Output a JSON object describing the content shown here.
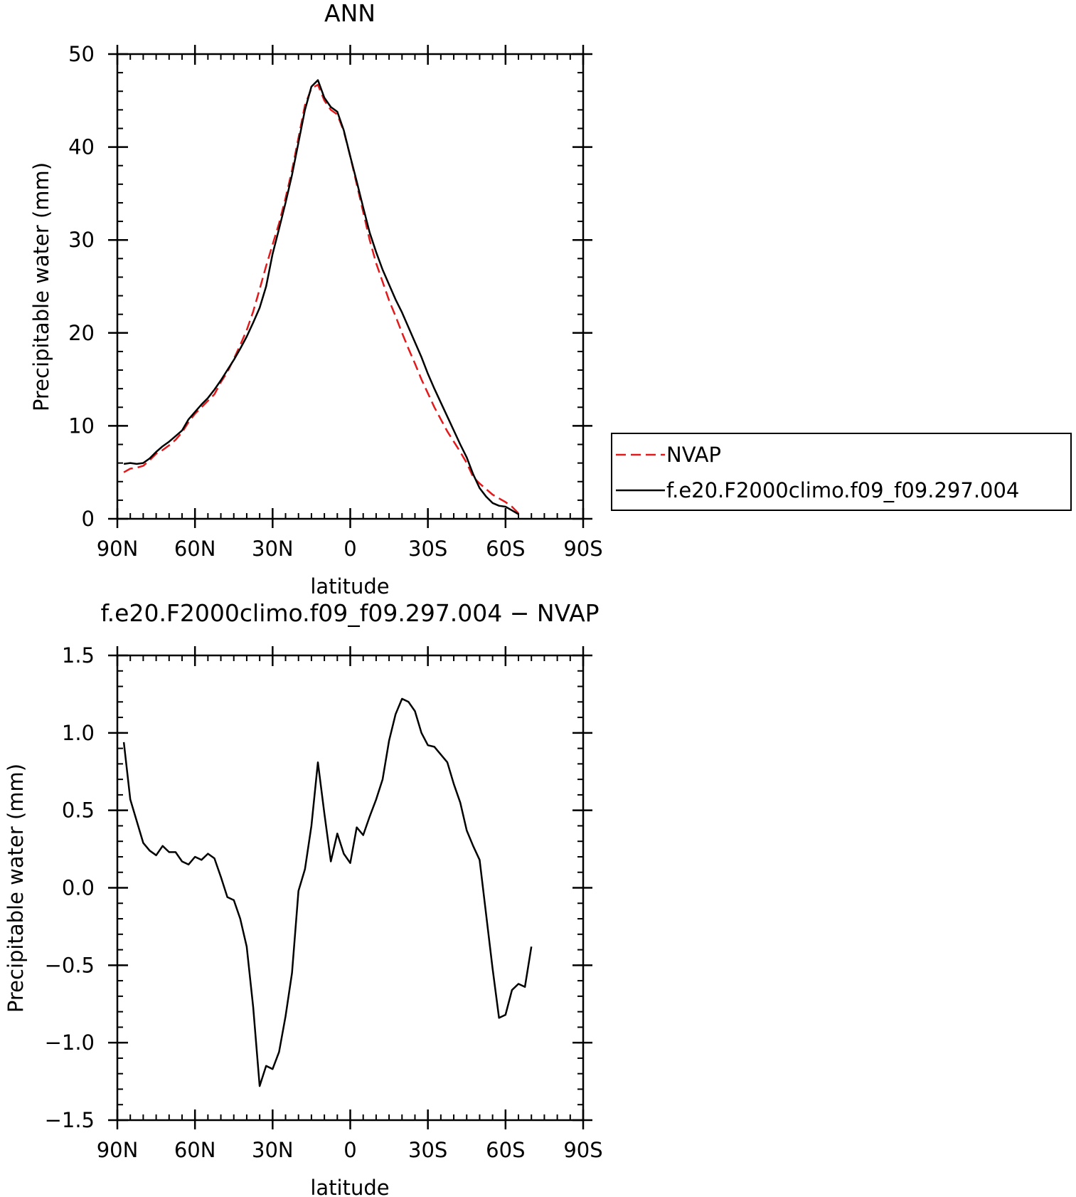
{
  "chart_data": [
    {
      "type": "line",
      "title": "ANN",
      "xlabel": "latitude",
      "ylabel": "Precipitable water (mm)",
      "xlim": [
        -90,
        90
      ],
      "ylim": [
        0,
        50
      ],
      "x_direction": "north-to-south",
      "x_ticks": [
        {
          "value": -90,
          "label": "90N"
        },
        {
          "value": -60,
          "label": "60N"
        },
        {
          "value": -30,
          "label": "30N"
        },
        {
          "value": 0,
          "label": "0"
        },
        {
          "value": 30,
          "label": "30S"
        },
        {
          "value": 60,
          "label": "60S"
        },
        {
          "value": 90,
          "label": "90S"
        }
      ],
      "y_ticks": [
        {
          "value": 0,
          "label": "0"
        },
        {
          "value": 10,
          "label": "10"
        },
        {
          "value": 20,
          "label": "20"
        },
        {
          "value": 30,
          "label": "30"
        },
        {
          "value": 40,
          "label": "40"
        },
        {
          "value": 50,
          "label": "50"
        }
      ],
      "legend_position": "right",
      "series": [
        {
          "name": "NVAP",
          "color": "#e31a1c",
          "dash": "dashed",
          "points": [
            [
              -87.5,
              5.0
            ],
            [
              -85,
              5.4
            ],
            [
              -82.5,
              5.5
            ],
            [
              -80,
              5.7
            ],
            [
              -77.5,
              6.3
            ],
            [
              -75,
              7.0
            ],
            [
              -72.5,
              7.4
            ],
            [
              -70,
              7.9
            ],
            [
              -67.5,
              8.5
            ],
            [
              -65,
              9.3
            ],
            [
              -62.5,
              10.4
            ],
            [
              -60,
              11.3
            ],
            [
              -57.5,
              12.0
            ],
            [
              -55,
              12.7
            ],
            [
              -52.5,
              13.4
            ],
            [
              -50,
              14.7
            ],
            [
              -47.5,
              15.8
            ],
            [
              -45,
              17.2
            ],
            [
              -42.5,
              18.7
            ],
            [
              -40,
              20.3
            ],
            [
              -37.5,
              22.3
            ],
            [
              -35,
              24.7
            ],
            [
              -32.5,
              27.2
            ],
            [
              -30,
              29.5
            ],
            [
              -27.5,
              31.8
            ],
            [
              -25,
              34.5
            ],
            [
              -22.5,
              37.5
            ],
            [
              -20,
              41.0
            ],
            [
              -17.5,
              44.5
            ],
            [
              -15,
              46.3
            ],
            [
              -12.5,
              46.7
            ],
            [
              -10,
              45.0
            ],
            [
              -7.5,
              44.0
            ],
            [
              -5,
              43.5
            ],
            [
              -2.5,
              41.7
            ],
            [
              0,
              39.0
            ],
            [
              2.5,
              36.0
            ],
            [
              5,
              33.0
            ],
            [
              7.5,
              30.0
            ],
            [
              10,
              27.5
            ],
            [
              12.5,
              25.5
            ],
            [
              15,
              23.5
            ],
            [
              17.5,
              21.8
            ],
            [
              20,
              20.0
            ],
            [
              22.5,
              18.3
            ],
            [
              25,
              16.7
            ],
            [
              27.5,
              15.0
            ],
            [
              30,
              13.5
            ],
            [
              32.5,
              12.0
            ],
            [
              35,
              10.7
            ],
            [
              37.5,
              9.4
            ],
            [
              40,
              8.3
            ],
            [
              42.5,
              7.2
            ],
            [
              45,
              6.0
            ],
            [
              47.5,
              4.5
            ],
            [
              50,
              3.8
            ],
            [
              52.5,
              3.2
            ],
            [
              55,
              2.6
            ],
            [
              57.5,
              2.2
            ],
            [
              60,
              1.8
            ],
            [
              62.5,
              1.3
            ],
            [
              65,
              0.6
            ]
          ]
        },
        {
          "name": "f.e20.F2000climo.f09_f09.297.004",
          "color": "#000000",
          "dash": "solid",
          "points": [
            [
              -87.5,
              5.9
            ],
            [
              -85,
              6.0
            ],
            [
              -82.5,
              5.9
            ],
            [
              -80,
              6.0
            ],
            [
              -77.5,
              6.5
            ],
            [
              -75,
              7.2
            ],
            [
              -72.5,
              7.8
            ],
            [
              -70,
              8.3
            ],
            [
              -67.5,
              8.9
            ],
            [
              -65,
              9.5
            ],
            [
              -62.5,
              10.7
            ],
            [
              -60,
              11.5
            ],
            [
              -57.5,
              12.3
            ],
            [
              -55,
              13.0
            ],
            [
              -52.5,
              13.9
            ],
            [
              -50,
              14.9
            ],
            [
              -47.5,
              16.0
            ],
            [
              -45,
              17.1
            ],
            [
              -42.5,
              18.3
            ],
            [
              -40,
              19.6
            ],
            [
              -37.5,
              21.1
            ],
            [
              -35,
              22.7
            ],
            [
              -32.5,
              25.0
            ],
            [
              -30,
              28.5
            ],
            [
              -27.5,
              31.2
            ],
            [
              -25,
              34.0
            ],
            [
              -22.5,
              37.0
            ],
            [
              -20,
              40.5
            ],
            [
              -17.5,
              44.0
            ],
            [
              -15,
              46.5
            ],
            [
              -12.5,
              47.2
            ],
            [
              -10,
              45.3
            ],
            [
              -7.5,
              44.3
            ],
            [
              -5,
              43.8
            ],
            [
              -2.5,
              41.8
            ],
            [
              0,
              39.0
            ],
            [
              2.5,
              36.3
            ],
            [
              5,
              33.5
            ],
            [
              7.5,
              30.8
            ],
            [
              10,
              28.7
            ],
            [
              12.5,
              26.8
            ],
            [
              15,
              25.2
            ],
            [
              17.5,
              23.6
            ],
            [
              20,
              22.2
            ],
            [
              22.5,
              20.6
            ],
            [
              25,
              19.0
            ],
            [
              27.5,
              17.4
            ],
            [
              30,
              15.6
            ],
            [
              32.5,
              14.0
            ],
            [
              35,
              12.5
            ],
            [
              37.5,
              11.0
            ],
            [
              40,
              9.5
            ],
            [
              42.5,
              8.0
            ],
            [
              45,
              6.6
            ],
            [
              47.5,
              4.8
            ],
            [
              50,
              3.3
            ],
            [
              52.5,
              2.4
            ],
            [
              55,
              1.7
            ],
            [
              57.5,
              1.4
            ],
            [
              60,
              1.3
            ],
            [
              62.5,
              0.9
            ],
            [
              65,
              0.5
            ]
          ]
        }
      ]
    },
    {
      "type": "line",
      "title": "f.e20.F2000climo.f09_f09.297.004 − NVAP",
      "xlabel": "latitude",
      "ylabel": "Precipitable water (mm)",
      "xlim": [
        -90,
        90
      ],
      "ylim": [
        -1.5,
        1.5
      ],
      "x_direction": "north-to-south",
      "x_ticks": [
        {
          "value": -90,
          "label": "90N"
        },
        {
          "value": -60,
          "label": "60N"
        },
        {
          "value": -30,
          "label": "30N"
        },
        {
          "value": 0,
          "label": "0"
        },
        {
          "value": 30,
          "label": "30S"
        },
        {
          "value": 60,
          "label": "60S"
        },
        {
          "value": 90,
          "label": "90S"
        }
      ],
      "y_ticks": [
        {
          "value": -1.5,
          "label": "−1.5"
        },
        {
          "value": -1.0,
          "label": "−1.0"
        },
        {
          "value": -0.5,
          "label": "−0.5"
        },
        {
          "value": 0.0,
          "label": "0.0"
        },
        {
          "value": 0.5,
          "label": "0.5"
        },
        {
          "value": 1.0,
          "label": "1.0"
        },
        {
          "value": 1.5,
          "label": "1.5"
        }
      ],
      "series": [
        {
          "color": "#000000",
          "dash": "solid",
          "points": [
            [
              -87.5,
              0.94
            ],
            [
              -85,
              0.57
            ],
            [
              -82.5,
              0.43
            ],
            [
              -80,
              0.29
            ],
            [
              -77.5,
              0.24
            ],
            [
              -75,
              0.21
            ],
            [
              -72.5,
              0.27
            ],
            [
              -70,
              0.23
            ],
            [
              -67.5,
              0.23
            ],
            [
              -65,
              0.17
            ],
            [
              -62.5,
              0.15
            ],
            [
              -60,
              0.2
            ],
            [
              -57.5,
              0.18
            ],
            [
              -55,
              0.22
            ],
            [
              -52.5,
              0.19
            ],
            [
              -50,
              0.07
            ],
            [
              -47.5,
              -0.06
            ],
            [
              -45,
              -0.08
            ],
            [
              -42.5,
              -0.2
            ],
            [
              -40,
              -0.38
            ],
            [
              -37.5,
              -0.77
            ],
            [
              -35,
              -1.28
            ],
            [
              -32.5,
              -1.15
            ],
            [
              -30,
              -1.17
            ],
            [
              -27.5,
              -1.06
            ],
            [
              -25,
              -0.83
            ],
            [
              -22.5,
              -0.55
            ],
            [
              -20,
              -0.02
            ],
            [
              -17.5,
              0.12
            ],
            [
              -15,
              0.4
            ],
            [
              -12.5,
              0.81
            ],
            [
              -10,
              0.48
            ],
            [
              -7.5,
              0.17
            ],
            [
              -5,
              0.35
            ],
            [
              -2.5,
              0.22
            ],
            [
              0,
              0.16
            ],
            [
              2.5,
              0.39
            ],
            [
              5,
              0.34
            ],
            [
              7.5,
              0.46
            ],
            [
              10,
              0.57
            ],
            [
              12.5,
              0.7
            ],
            [
              15,
              0.95
            ],
            [
              17.5,
              1.12
            ],
            [
              20,
              1.22
            ],
            [
              22.5,
              1.2
            ],
            [
              25,
              1.14
            ],
            [
              27.5,
              1.0
            ],
            [
              30,
              0.92
            ],
            [
              32.5,
              0.91
            ],
            [
              35,
              0.86
            ],
            [
              37.5,
              0.81
            ],
            [
              40,
              0.67
            ],
            [
              42.5,
              0.55
            ],
            [
              45,
              0.37
            ],
            [
              47.5,
              0.27
            ],
            [
              50,
              0.18
            ],
            [
              52.5,
              -0.17
            ],
            [
              55,
              -0.52
            ],
            [
              57.5,
              -0.84
            ],
            [
              60,
              -0.82
            ],
            [
              62.5,
              -0.66
            ],
            [
              65,
              -0.62
            ],
            [
              67.5,
              -0.64
            ],
            [
              70,
              -0.38
            ]
          ]
        }
      ]
    }
  ]
}
